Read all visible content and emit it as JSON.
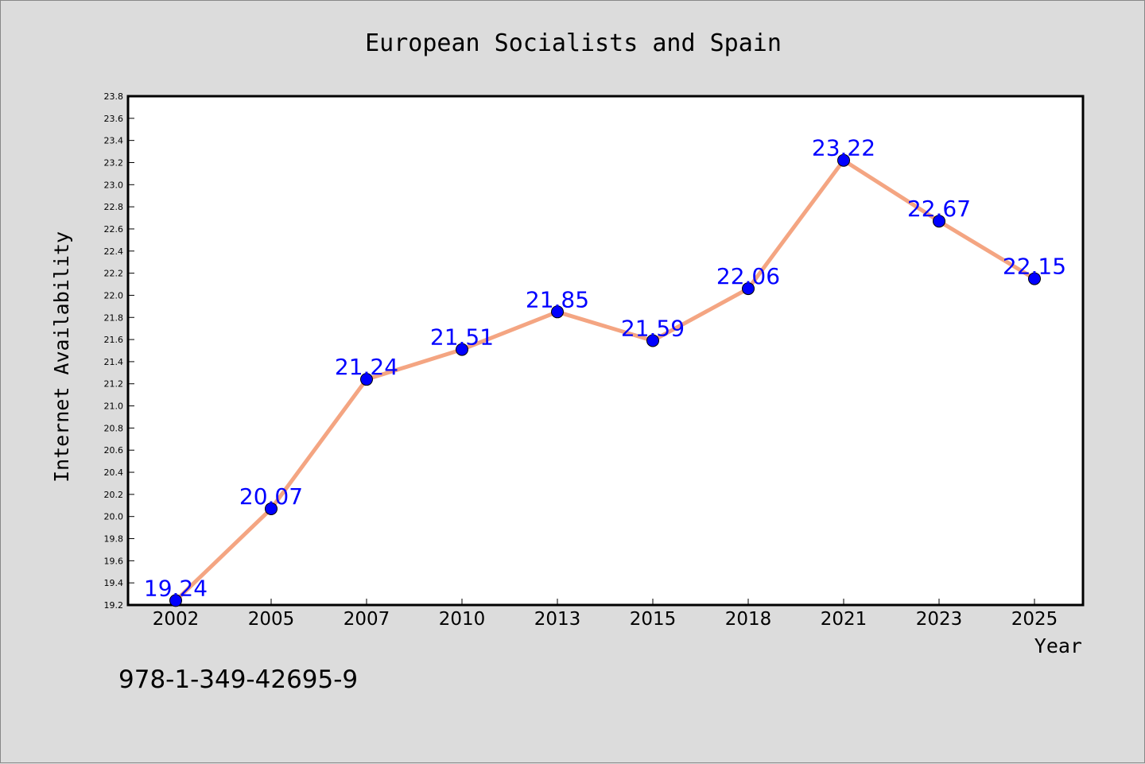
{
  "chart_data": {
    "type": "line",
    "title": "European Socialists and Spain",
    "xlabel": "Year",
    "ylabel": "Internet Availability",
    "categories": [
      "2002",
      "2005",
      "2007",
      "2010",
      "2013",
      "2015",
      "2018",
      "2021",
      "2023",
      "2025"
    ],
    "series": [
      {
        "values": [
          19.24,
          20.07,
          21.24,
          21.51,
          21.85,
          21.59,
          22.06,
          23.22,
          22.67,
          22.15
        ],
        "data_labels": [
          "19.24",
          "20.07",
          "21.24",
          "21.51",
          "21.85",
          "21.59",
          "22.06",
          "23.22",
          "22.67",
          "22.15"
        ],
        "line_color": "#f4a582",
        "marker_color": "#0000ff",
        "label_color": "#0000ff"
      }
    ],
    "ylim": [
      19.2,
      23.8
    ],
    "ytick_step": 0.2,
    "ytick_labels": [
      "19.2",
      "19.4",
      "19.6",
      "19.8",
      "20.0",
      "20.2",
      "20.4",
      "20.6",
      "20.8",
      "21.0",
      "21.2",
      "21.4",
      "21.6",
      "21.8",
      "22.0",
      "22.2",
      "22.4",
      "22.6",
      "22.8",
      "23.0",
      "23.2",
      "23.4",
      "23.6",
      "23.8"
    ],
    "grid": false,
    "legend": "none"
  },
  "footer": {
    "isbn": "978-1-349-42695-9"
  },
  "colors": {
    "background": "#dcdcdc",
    "plot_background": "#ffffff",
    "axis": "#000000"
  }
}
